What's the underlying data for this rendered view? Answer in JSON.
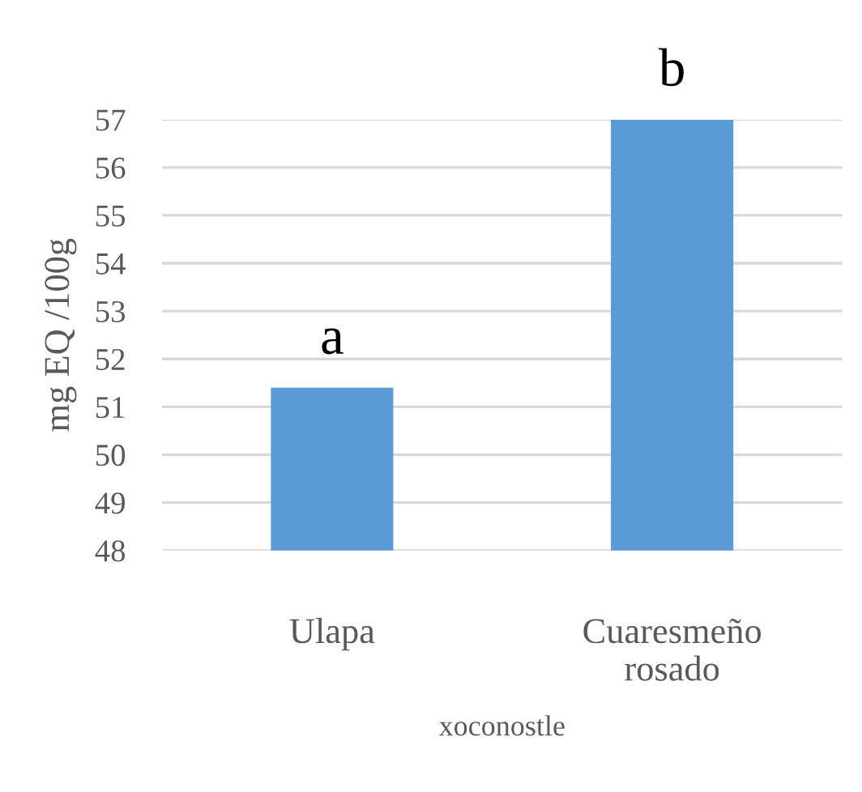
{
  "chart_data": {
    "type": "bar",
    "ylabel": "mg EQ /100g",
    "xlabel": "xoconostle",
    "categories": [
      "Ulapa",
      "Cuaresmeño\nrosado"
    ],
    "values": [
      51.4,
      57.0
    ],
    "color": "#5b9bd5",
    "ylim": [
      48,
      57
    ],
    "yticks": [
      48,
      49,
      50,
      51,
      52,
      53,
      54,
      55,
      56,
      57
    ],
    "grid": "y",
    "annotations": [
      {
        "text": "a",
        "x": "Ulapa",
        "y": 51.4
      },
      {
        "text": "b",
        "x": "Cuaresmeño\nrosado",
        "y": 57.0
      }
    ]
  }
}
